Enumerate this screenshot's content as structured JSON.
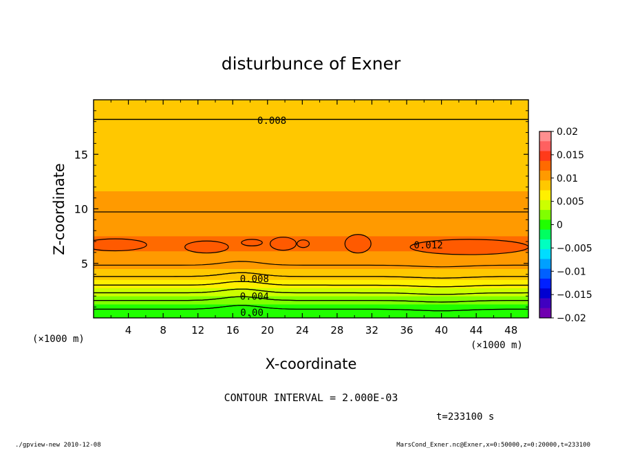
{
  "chart_data": {
    "type": "heatmap",
    "title": "disturbunce of Exner",
    "xlabel": "X-coordinate",
    "ylabel": "Z-coordinate",
    "x_unit": "(×1000 m)",
    "x_unit_bottom": "(×1000 m)",
    "xlim": [
      0,
      50
    ],
    "ylim": [
      0,
      20
    ],
    "x_ticks": [
      "4",
      "8",
      "12",
      "16",
      "20",
      "24",
      "28",
      "32",
      "36",
      "40",
      "44",
      "48"
    ],
    "y_ticks": [
      "5",
      "10",
      "15"
    ],
    "contour_interval_text": "CONTOUR INTERVAL = 2.000E-03",
    "time_text": "t=233100 s",
    "contour_labels": [
      {
        "text": "0.008",
        "x": 20.5,
        "z": 18.1
      },
      {
        "text": "0.012",
        "x": 38.5,
        "z": 6.7
      },
      {
        "text": "0.008",
        "x": 18.5,
        "z": 3.6
      },
      {
        "text": "0.004",
        "x": 18.5,
        "z": 2.0
      },
      {
        "text": "0.00",
        "x": 18.2,
        "z": 0.5
      }
    ],
    "colorbar": {
      "tick_labels": [
        "0.02",
        "0.015",
        "0.01",
        "0.005",
        "0",
        "−0.005",
        "−0.01",
        "−0.015",
        "−0.02"
      ],
      "colors": [
        "#ff8f8f",
        "#ff6060",
        "#ff3a1a",
        "#ff6a00",
        "#ff9a00",
        "#ffc800",
        "#fff000",
        "#ccff00",
        "#80ff00",
        "#20ff00",
        "#00ff60",
        "#00ffc0",
        "#00ddff",
        "#00a0ff",
        "#0060ff",
        "#0020ff",
        "#0000d0",
        "#4000c0",
        "#7000b0"
      ]
    },
    "profile": [
      {
        "z": 0.0,
        "value": -0.0005
      },
      {
        "z": 0.8,
        "value": 0.0
      },
      {
        "z": 1.6,
        "value": 0.002
      },
      {
        "z": 2.3,
        "value": 0.004
      },
      {
        "z": 3.0,
        "value": 0.006
      },
      {
        "z": 3.8,
        "value": 0.008
      },
      {
        "z": 4.5,
        "value": 0.0095
      },
      {
        "z": 5.5,
        "value": 0.011
      },
      {
        "z": 6.8,
        "value": 0.0121
      },
      {
        "z": 8.0,
        "value": 0.0112
      },
      {
        "z": 9.0,
        "value": 0.0102
      },
      {
        "z": 11.5,
        "value": 0.0095
      },
      {
        "z": 13.0,
        "value": 0.0092
      },
      {
        "z": 15.5,
        "value": 0.0087
      },
      {
        "z": 18.2,
        "value": 0.008
      },
      {
        "z": 20.0,
        "value": 0.0078
      }
    ]
  },
  "footer": {
    "left": "./gpview-new   2010-12-08",
    "right": "MarsCond_Exner.nc@Exner,x=0:50000,z=0:20000,t=233100"
  }
}
